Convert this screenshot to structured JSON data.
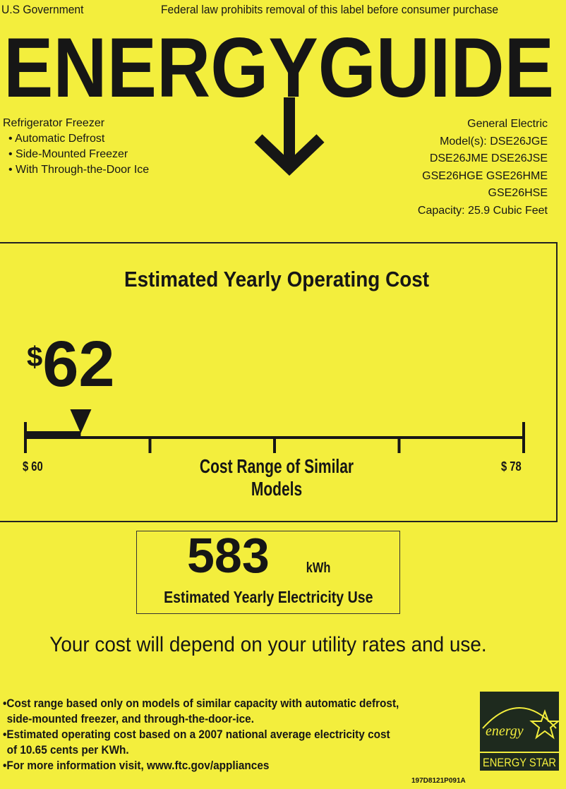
{
  "header": {
    "left": "U.S Government",
    "right": "Federal law prohibits removal of this label before consumer purchase",
    "title": "ENERGYGUIDE"
  },
  "product": {
    "type": "Refrigerator Freezer",
    "features": [
      "Automatic Defrost",
      "Side-Mounted Freezer",
      "With Through-the-Door Ice"
    ],
    "manufacturer": "General Electric",
    "models_lines": [
      "Model(s): DSE26JGE",
      "DSE26JME DSE26JSE",
      "GSE26HGE GSE26HME",
      "GSE26HSE"
    ],
    "capacity": "Capacity: 25.9 Cubic Feet"
  },
  "cost": {
    "heading": "Estimated Yearly Operating Cost",
    "currency": "$",
    "amount": "62",
    "range_min_label": "$ 60",
    "range_max_label": "$ 78",
    "range_min": 60,
    "range_max": 78,
    "value": 62,
    "range_label": "Cost Range of Similar Models"
  },
  "electricity": {
    "value": "583",
    "unit": "kWh",
    "label": "Estimated Yearly Electricity Use"
  },
  "notice": "Your cost will depend on your utility rates and use.",
  "footnotes": [
    "Cost range based only on models of similar capacity with automatic defrost,",
    "side-mounted freezer, and through-the-door-ice.",
    "Estimated operating cost based on a 2007 national average electricity cost",
    "of 10.65 cents per KWh.",
    "For more information visit, www.ftc.gov/appliances"
  ],
  "logo": {
    "script": "energy",
    "text": "ENERGY STAR"
  },
  "code": "197D8121P091A",
  "colors": {
    "background": "#f3ee3d",
    "ink": "#161616"
  }
}
